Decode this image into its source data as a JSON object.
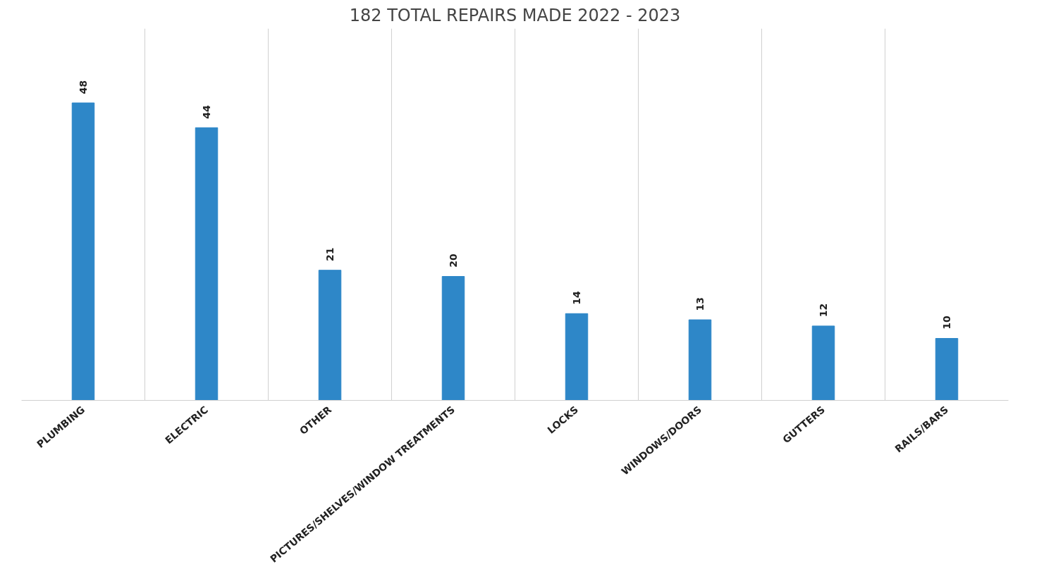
{
  "chart_data": {
    "type": "bar",
    "title": "182 TOTAL REPAIRS MADE 2022 - 2023",
    "categories": [
      "PLUMBING",
      "ELECTRIC",
      "OTHER",
      "PICTURES/SHELVES/WINDOW TREATMENTS",
      "LOCKS",
      "WINDOWS/DOORS",
      "GUTTERS",
      "RAILS/BARS"
    ],
    "values": [
      48,
      44,
      21,
      20,
      14,
      13,
      12,
      10
    ],
    "color": "#2e87c8",
    "data_labels": true,
    "grid": "x"
  }
}
